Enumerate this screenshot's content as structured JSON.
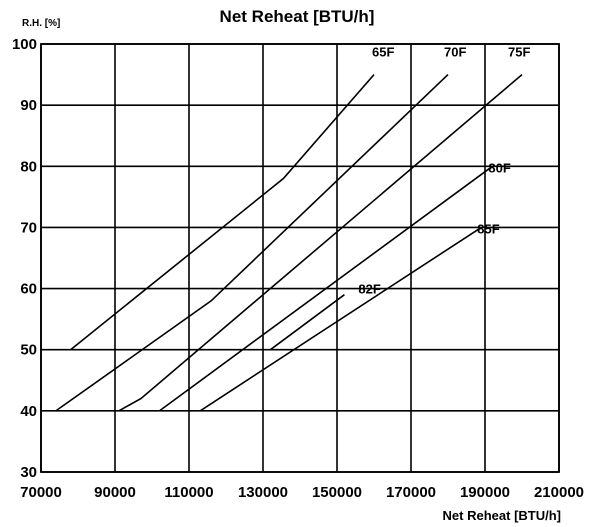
{
  "chart_data": {
    "type": "line",
    "title": "Net Reheat [BTU/h]",
    "xlabel": "Net Reheat [BTU/h]",
    "ylabel": "R.H. [%]",
    "xlim": [
      70000,
      210000
    ],
    "ylim": [
      30,
      100
    ],
    "xticks": [
      70000,
      90000,
      110000,
      130000,
      150000,
      170000,
      190000,
      210000
    ],
    "yticks": [
      30,
      40,
      50,
      60,
      70,
      80,
      90,
      100
    ],
    "grid": true,
    "legend": "none",
    "series": [
      {
        "name": "65F",
        "points": [
          [
            78000,
            50
          ],
          [
            135500,
            78
          ],
          [
            160000,
            95
          ]
        ]
      },
      {
        "name": "70F",
        "points": [
          [
            74000,
            40
          ],
          [
            116000,
            58
          ],
          [
            180000,
            95
          ]
        ]
      },
      {
        "name": "75F",
        "points": [
          [
            91000,
            40
          ],
          [
            97000,
            42
          ],
          [
            200000,
            95
          ]
        ]
      },
      {
        "name": "80F",
        "points": [
          [
            102000,
            40
          ],
          [
            192000,
            80
          ]
        ]
      },
      {
        "name": "82F",
        "points": [
          [
            132000,
            50
          ],
          [
            152000,
            59
          ]
        ]
      },
      {
        "name": "85F",
        "points": [
          [
            113000,
            40
          ],
          [
            189000,
            70
          ]
        ]
      }
    ]
  }
}
